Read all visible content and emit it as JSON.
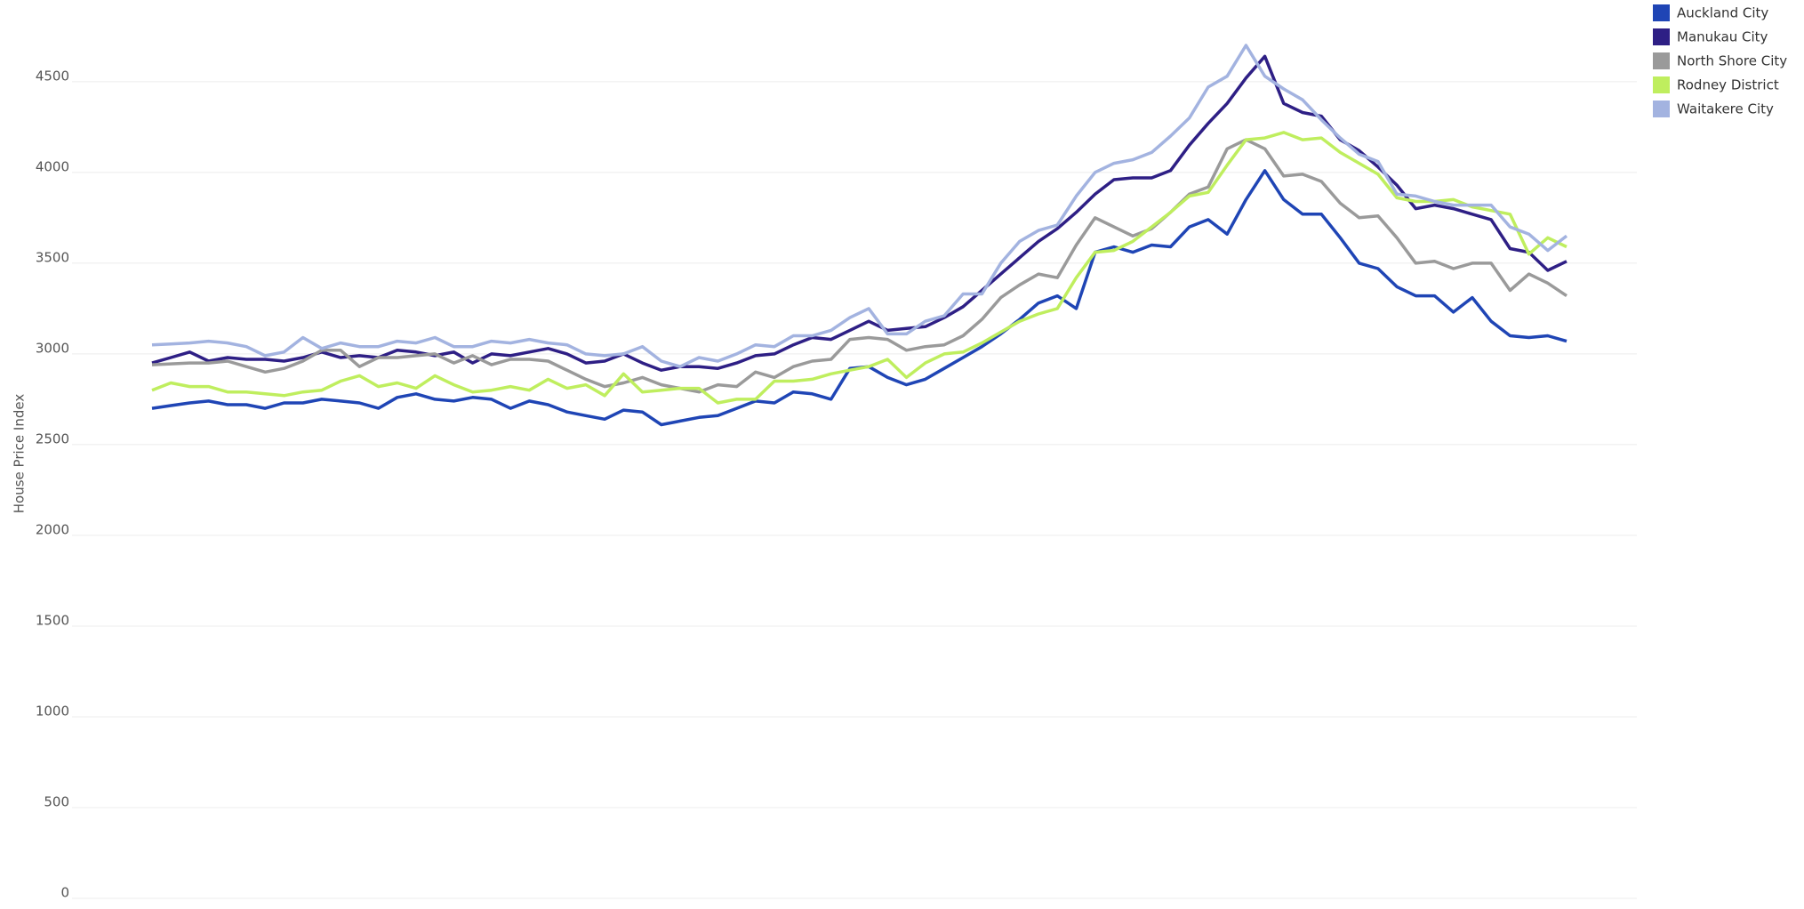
{
  "chart_data": {
    "type": "line",
    "y_label": "House Price Index",
    "categories": [
      null,
      null,
      null,
      null,
      null,
      null,
      null,
      null,
      null,
      null,
      null,
      null,
      null,
      null,
      null,
      null,
      null,
      null,
      null,
      null,
      null,
      null,
      null,
      null,
      null,
      null,
      null,
      null,
      null,
      null,
      null,
      null,
      null,
      null,
      null,
      null,
      null,
      null,
      null,
      null,
      null,
      null,
      null,
      null,
      null,
      null,
      null,
      null,
      null,
      null,
      null,
      null,
      null,
      null,
      null,
      null,
      null,
      null,
      null,
      null,
      null,
      null,
      null,
      null,
      null,
      null,
      null,
      null,
      null,
      null,
      null,
      null,
      null,
      null,
      null,
      null
    ],
    "ylim": [
      0,
      4950
    ],
    "yticks": [
      0,
      500,
      1000,
      1500,
      2000,
      2500,
      3000,
      3500,
      4000,
      4500
    ],
    "grid": true,
    "legend": "top-right",
    "series": [
      {
        "name": "Auckland City",
        "color": "#1f45b5",
        "values": [
          2700,
          2715,
          2730,
          2740,
          2720,
          2720,
          2700,
          2730,
          2730,
          2750,
          2740,
          2730,
          2700,
          2760,
          2780,
          2750,
          2740,
          2760,
          2750,
          2700,
          2740,
          2720,
          2680,
          2660,
          2640,
          2690,
          2680,
          2610,
          2630,
          2650,
          2660,
          2700,
          2740,
          2730,
          2790,
          2780,
          2750,
          2920,
          2930,
          2870,
          2830,
          2860,
          2920,
          2980,
          3040,
          3110,
          3190,
          3280,
          3320,
          3250,
          3560,
          3590,
          3560,
          3600,
          3590,
          3700,
          3740,
          3660,
          3850,
          4010,
          3850,
          3770,
          3770,
          3640,
          3500,
          3470,
          3370,
          3320,
          3320,
          3230,
          3310,
          3180,
          3100,
          3090,
          3100,
          3070
        ]
      },
      {
        "name": "Manukau City",
        "color": "#2e1f85",
        "values": [
          2950,
          2980,
          3010,
          2960,
          2980,
          2970,
          2970,
          2960,
          2980,
          3010,
          2980,
          2990,
          2980,
          3020,
          3010,
          2990,
          3010,
          2950,
          3000,
          2990,
          3010,
          3030,
          3000,
          2950,
          2960,
          3000,
          2950,
          2910,
          2930,
          2930,
          2920,
          2950,
          2990,
          3000,
          3050,
          3090,
          3080,
          3130,
          3180,
          3130,
          3140,
          3150,
          3200,
          3260,
          3350,
          3440,
          3530,
          3620,
          3690,
          3780,
          3880,
          3960,
          3970,
          3970,
          4010,
          4150,
          4270,
          4380,
          4520,
          4640,
          4380,
          4330,
          4310,
          4180,
          4120,
          4030,
          3930,
          3800,
          3820,
          3800,
          3770,
          3740,
          3580,
          3560,
          3460,
          3510
        ]
      },
      {
        "name": "North Shore City",
        "color": "#9a9a9a",
        "values": [
          2940,
          2945,
          2950,
          2950,
          2960,
          2930,
          2900,
          2920,
          2960,
          3020,
          3020,
          2930,
          2980,
          2980,
          2990,
          3000,
          2950,
          2990,
          2940,
          2970,
          2970,
          2960,
          2910,
          2860,
          2820,
          2840,
          2870,
          2830,
          2810,
          2790,
          2830,
          2820,
          2900,
          2870,
          2930,
          2960,
          2970,
          3080,
          3090,
          3080,
          3020,
          3040,
          3050,
          3100,
          3190,
          3310,
          3380,
          3440,
          3420,
          3600,
          3750,
          3700,
          3650,
          3690,
          3780,
          3880,
          3920,
          4130,
          4180,
          4130,
          3980,
          3990,
          3950,
          3830,
          3750,
          3760,
          3640,
          3500,
          3510,
          3470,
          3500,
          3500,
          3350,
          3440,
          3390,
          3320
        ]
      },
      {
        "name": "Rodney District",
        "color": "#bfee5e",
        "values": [
          2800,
          2840,
          2820,
          2820,
          2790,
          2790,
          2780,
          2770,
          2790,
          2800,
          2850,
          2880,
          2820,
          2840,
          2810,
          2880,
          2830,
          2790,
          2800,
          2820,
          2800,
          2860,
          2810,
          2830,
          2770,
          2890,
          2790,
          2800,
          2810,
          2810,
          2730,
          2750,
          2750,
          2850,
          2850,
          2860,
          2890,
          2910,
          2930,
          2970,
          2870,
          2950,
          3000,
          3010,
          3060,
          3120,
          3180,
          3220,
          3250,
          3420,
          3560,
          3570,
          3620,
          3700,
          3780,
          3870,
          3890,
          4040,
          4180,
          4190,
          4220,
          4180,
          4190,
          4110,
          4050,
          3990,
          3860,
          3840,
          3840,
          3850,
          3810,
          3790,
          3770,
          3550,
          3640,
          3590
        ]
      },
      {
        "name": "Waitakere City",
        "color": "#a3b3e0",
        "values": [
          3050,
          3055,
          3060,
          3070,
          3060,
          3040,
          2990,
          3010,
          3090,
          3030,
          3060,
          3040,
          3040,
          3070,
          3060,
          3090,
          3040,
          3040,
          3070,
          3060,
          3080,
          3060,
          3050,
          3000,
          2990,
          3000,
          3040,
          2960,
          2930,
          2980,
          2960,
          3000,
          3050,
          3040,
          3100,
          3100,
          3130,
          3200,
          3250,
          3110,
          3110,
          3180,
          3210,
          3330,
          3330,
          3500,
          3620,
          3680,
          3710,
          3870,
          4000,
          4050,
          4070,
          4110,
          4200,
          4300,
          4470,
          4530,
          4700,
          4530,
          4460,
          4400,
          4290,
          4190,
          4100,
          4060,
          3880,
          3870,
          3840,
          3820,
          3820,
          3820,
          3700,
          3660,
          3570,
          3650
        ]
      }
    ]
  }
}
